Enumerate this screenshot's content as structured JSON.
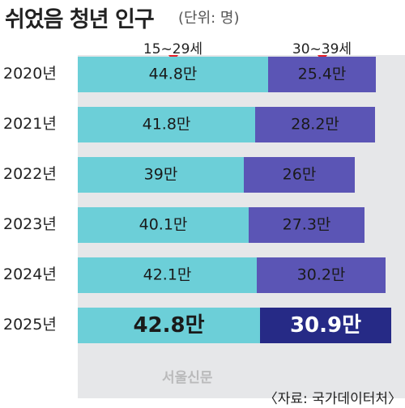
{
  "header": {
    "title": "쉬었음 청년 인구",
    "unit": "(단위: 명)"
  },
  "source": "〈자료: 국가데이터처〉",
  "watermark": "서울신문",
  "colors": {
    "age_15_29": "#6ccfd8",
    "age_30_39": "#5b55b5",
    "age_30_39_highlight": "#262a86",
    "marker": "#e8202a"
  },
  "chart_data": {
    "type": "bar",
    "orientation": "horizontal",
    "stacked": true,
    "title": "쉬었음 청년 인구",
    "unit": "(단위: 명)",
    "value_suffix": "만",
    "categories": [
      "2020년",
      "2021년",
      "2022년",
      "2023년",
      "2024년",
      "2025년"
    ],
    "highlight_category": "2025년",
    "series": [
      {
        "name": "15~29세",
        "values": [
          44.8,
          41.8,
          39,
          40.1,
          42.1,
          42.8
        ]
      },
      {
        "name": "30~39세",
        "values": [
          25.4,
          28.2,
          26,
          27.3,
          30.2,
          30.9
        ]
      }
    ],
    "axis_range": [
      0,
      80
    ]
  }
}
